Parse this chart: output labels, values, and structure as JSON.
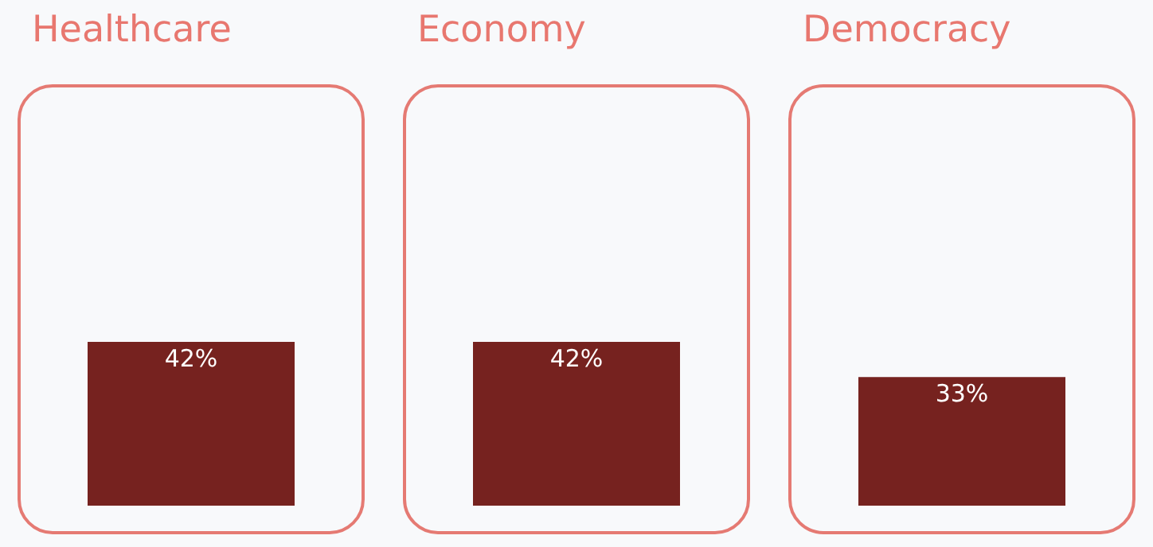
{
  "chart_data": {
    "type": "bar",
    "categories": [
      "Healthcare",
      "Economy",
      "Democracy"
    ],
    "values": [
      42,
      42,
      33
    ],
    "value_labels": [
      "42%",
      "42%",
      "33%"
    ],
    "color": "#76221f"
  }
}
